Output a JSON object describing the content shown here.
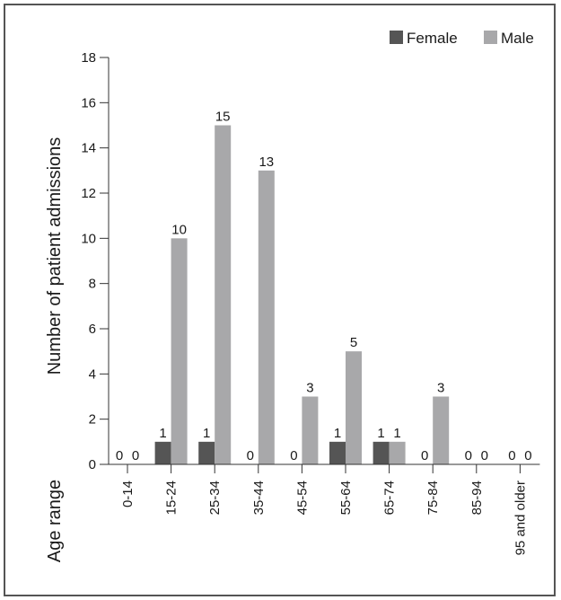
{
  "chart_data": {
    "type": "bar",
    "ylabel": "Number of patient admissions",
    "xlabel": "Age range",
    "categories": [
      "0-14",
      "15-24",
      "25-34",
      "35-44",
      "45-54",
      "55-64",
      "65-74",
      "75-84",
      "85-94",
      "95 and older"
    ],
    "series": [
      {
        "name": "Female",
        "color": "#555555",
        "values": [
          0,
          1,
          1,
          0,
          0,
          1,
          1,
          0,
          0,
          0
        ]
      },
      {
        "name": "Male",
        "color": "#a8a8aa",
        "values": [
          0,
          10,
          15,
          13,
          3,
          5,
          1,
          3,
          0,
          0
        ]
      }
    ],
    "ylim": [
      0,
      18
    ],
    "yticks": [
      0,
      2,
      4,
      6,
      8,
      10,
      12,
      14,
      16,
      18
    ],
    "grid": false,
    "legend": "top-right",
    "data_labels": true
  }
}
